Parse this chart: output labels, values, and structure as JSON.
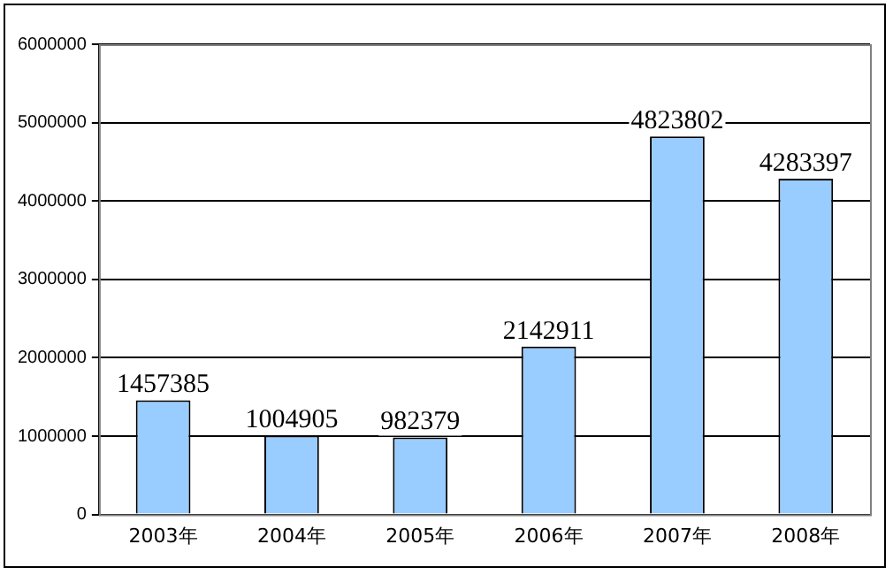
{
  "chart_data": {
    "type": "bar",
    "categories": [
      "2003年",
      "2004年",
      "2005年",
      "2006年",
      "2007年",
      "2008年"
    ],
    "values": [
      1457385,
      1004905,
      982379,
      2142911,
      4823802,
      4283397
    ],
    "color": "#99ccff",
    "ylim": [
      0,
      6000000
    ],
    "yticks": [
      0,
      1000000,
      2000000,
      3000000,
      4000000,
      5000000,
      6000000
    ],
    "grid": "y",
    "legend": false,
    "data_labels": true
  }
}
